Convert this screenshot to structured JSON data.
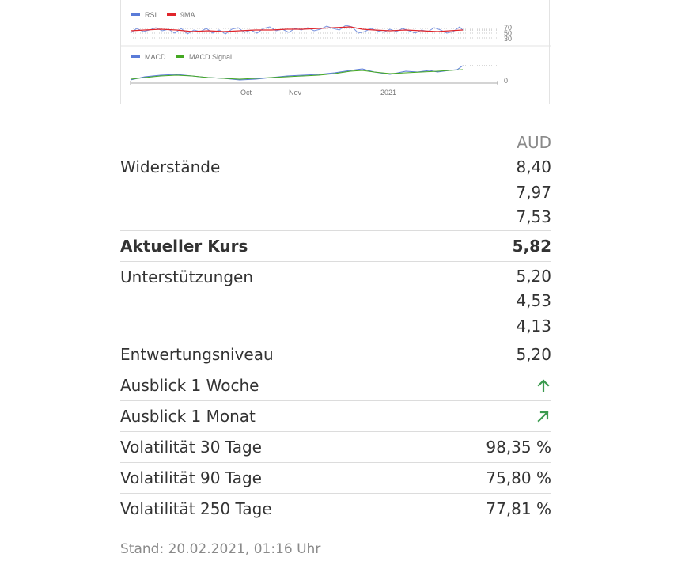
{
  "chart": {
    "rsi_legend": [
      "RSI",
      "9MA"
    ],
    "rsi_levels": [
      "70",
      "50",
      "30"
    ],
    "macd_legend": [
      "MACD",
      "MACD Signal"
    ],
    "macd_level": "0",
    "x_ticks": [
      "Oct",
      "Nov",
      "2021"
    ],
    "colors": {
      "rsi": "#5a7bd8",
      "ma": "#e0252b",
      "macd": "#5a7bd8",
      "signal": "#44a822"
    }
  },
  "table": {
    "currency": "AUD",
    "resistances": {
      "label": "Widerstände",
      "values": [
        "8,40",
        "7,97",
        "7,53"
      ]
    },
    "current": {
      "label": "Aktueller Kurs",
      "value": "5,82"
    },
    "supports": {
      "label": "Unterstützungen",
      "values": [
        "5,20",
        "4,53",
        "4,13"
      ]
    },
    "devaluation": {
      "label": "Entwertungsniveau",
      "value": "5,20"
    },
    "outlook_week": {
      "label": "Ausblick 1 Woche",
      "icon": "arrow-up-icon"
    },
    "outlook_month": {
      "label": "Ausblick 1 Monat",
      "icon": "arrow-up-right-icon"
    },
    "vol30": {
      "label": "Volatilität 30 Tage",
      "value": "98,35 %"
    },
    "vol90": {
      "label": "Volatilität 90 Tage",
      "value": "75,80 %"
    },
    "vol250": {
      "label": "Volatilität 250 Tage",
      "value": "77,81 %"
    }
  },
  "footer": {
    "stand": "Stand: 20.02.2021, 01:16 Uhr"
  },
  "colors": {
    "arrow": "#3a9a4e",
    "text": "#333333",
    "muted": "#8a8a8a"
  }
}
